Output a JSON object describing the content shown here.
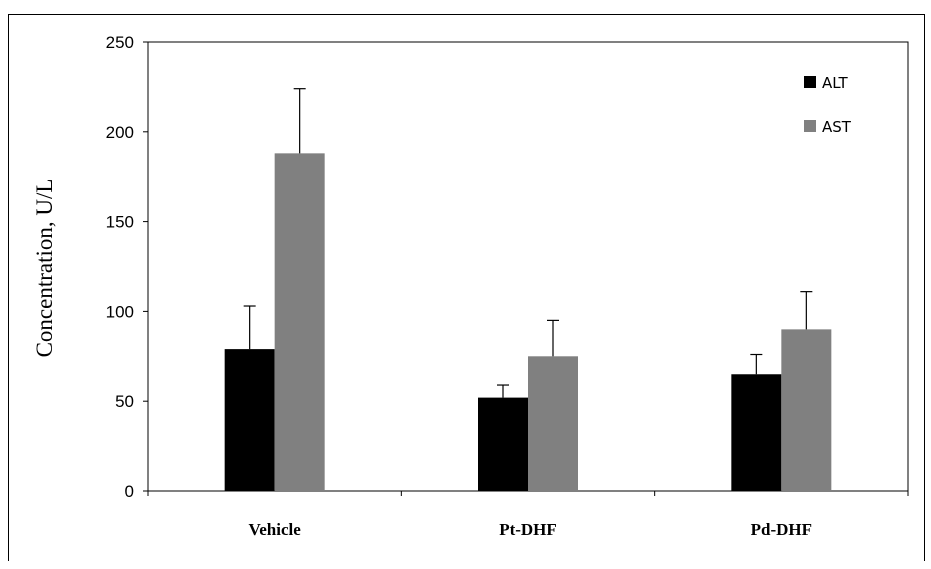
{
  "chart_data": {
    "type": "bar",
    "categories": [
      "Vehicle",
      "Pt-DHF",
      "Pd-DHF"
    ],
    "series": [
      {
        "name": "ALT",
        "values": [
          79,
          52,
          65
        ],
        "error": [
          24,
          7,
          11
        ],
        "color": "#000000"
      },
      {
        "name": "AST",
        "values": [
          188,
          75,
          90
        ],
        "error": [
          36,
          20,
          21
        ],
        "color": "#808080"
      }
    ],
    "ylabel": "Concentration, U/L",
    "xlabel": "",
    "ylim": [
      0,
      250
    ],
    "yticks": [
      0,
      50,
      100,
      150,
      200,
      250
    ],
    "legend_position": "top-right",
    "grid": false
  }
}
